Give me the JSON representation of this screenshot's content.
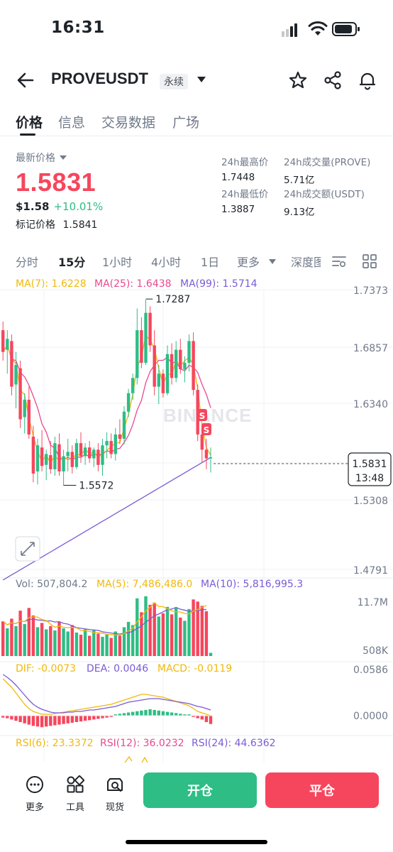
{
  "status": {
    "time": "16:31"
  },
  "header": {
    "pair": "PROVEUSDT",
    "contract_type": "永续"
  },
  "tabs": [
    "价格",
    "信息",
    "交易数据",
    "广场"
  ],
  "price": {
    "label": "最新价格",
    "last": "1.5831",
    "usd": "$1.58",
    "change": "+10.01%",
    "mark_label": "标记价格",
    "mark_value": "1.5841"
  },
  "stats": {
    "high_label": "24h最高价",
    "high": "1.7448",
    "low_label": "24h最低价",
    "low": "1.3887",
    "vol_label": "24h成交量(PROVE)",
    "vol": "5.71亿",
    "amount_label": "24h成交额(USDT)",
    "amount": "9.13亿"
  },
  "timeframes": [
    "分时",
    "15分",
    "1小时",
    "4小时",
    "1日",
    "更多",
    "深度图"
  ],
  "indicators": {
    "ma7": "MA(7): 1.6228",
    "ma25": "MA(25): 1.6438",
    "ma99": "MA(99): 1.5714",
    "vol": "Vol: 507,804.2",
    "vol_ma5": "MA(5): 7,486,486.0",
    "vol_ma10": "MA(10): 5,816,995.3",
    "dif": "DIF: -0.0073",
    "dea": "DEA: 0.0046",
    "macd": "MACD: -0.0119",
    "rsi6": "RSI(6): 23.3372",
    "rsi12": "RSI(12): 36.0232",
    "rsi24": "RSI(24): 44.6362"
  },
  "chart_data": {
    "type": "candlestick",
    "price_axis_ticks": [
      "1.7373",
      "1.6857",
      "1.6340",
      "1.5831",
      "1.5308",
      "1.4791"
    ],
    "current_price": "1.5831",
    "countdown": "13:48",
    "high_marker": "1.7287",
    "low_marker": "1.5572",
    "volume_axis_ticks": [
      "11.7M",
      "508K"
    ],
    "macd_axis_ticks": [
      "0.0586",
      "0.0000"
    ],
    "watermark": "BINANCE",
    "candles": [
      {
        "o": 1.7,
        "h": 1.708,
        "l": 1.672,
        "c": 1.68
      },
      {
        "o": 1.682,
        "h": 1.7,
        "l": 1.66,
        "c": 1.692
      },
      {
        "o": 1.69,
        "h": 1.696,
        "l": 1.64,
        "c": 1.648
      },
      {
        "o": 1.65,
        "h": 1.68,
        "l": 1.628,
        "c": 1.668
      },
      {
        "o": 1.665,
        "h": 1.672,
        "l": 1.61,
        "c": 1.618
      },
      {
        "o": 1.62,
        "h": 1.642,
        "l": 1.605,
        "c": 1.636
      },
      {
        "o": 1.636,
        "h": 1.648,
        "l": 1.6,
        "c": 1.604
      },
      {
        "o": 1.602,
        "h": 1.612,
        "l": 1.56,
        "c": 1.568
      },
      {
        "o": 1.57,
        "h": 1.6,
        "l": 1.558,
        "c": 1.594
      },
      {
        "o": 1.592,
        "h": 1.608,
        "l": 1.57,
        "c": 1.575
      },
      {
        "o": 1.576,
        "h": 1.59,
        "l": 1.562,
        "c": 1.586
      },
      {
        "o": 1.585,
        "h": 1.598,
        "l": 1.568,
        "c": 1.572
      },
      {
        "o": 1.572,
        "h": 1.602,
        "l": 1.566,
        "c": 1.596
      },
      {
        "o": 1.595,
        "h": 1.605,
        "l": 1.566,
        "c": 1.57
      },
      {
        "o": 1.57,
        "h": 1.59,
        "l": 1.557,
        "c": 1.584
      },
      {
        "o": 1.584,
        "h": 1.6,
        "l": 1.57,
        "c": 1.588
      },
      {
        "o": 1.588,
        "h": 1.594,
        "l": 1.568,
        "c": 1.574
      },
      {
        "o": 1.574,
        "h": 1.6,
        "l": 1.572,
        "c": 1.596
      },
      {
        "o": 1.596,
        "h": 1.606,
        "l": 1.578,
        "c": 1.584
      },
      {
        "o": 1.584,
        "h": 1.596,
        "l": 1.576,
        "c": 1.592
      },
      {
        "o": 1.592,
        "h": 1.598,
        "l": 1.578,
        "c": 1.582
      },
      {
        "o": 1.582,
        "h": 1.592,
        "l": 1.574,
        "c": 1.59
      },
      {
        "o": 1.59,
        "h": 1.596,
        "l": 1.57,
        "c": 1.576
      },
      {
        "o": 1.576,
        "h": 1.6,
        "l": 1.566,
        "c": 1.594
      },
      {
        "o": 1.594,
        "h": 1.606,
        "l": 1.582,
        "c": 1.598
      },
      {
        "o": 1.598,
        "h": 1.605,
        "l": 1.582,
        "c": 1.586
      },
      {
        "o": 1.586,
        "h": 1.61,
        "l": 1.58,
        "c": 1.604
      },
      {
        "o": 1.604,
        "h": 1.618,
        "l": 1.595,
        "c": 1.6
      },
      {
        "o": 1.6,
        "h": 1.63,
        "l": 1.595,
        "c": 1.625
      },
      {
        "o": 1.625,
        "h": 1.646,
        "l": 1.62,
        "c": 1.642
      },
      {
        "o": 1.642,
        "h": 1.66,
        "l": 1.636,
        "c": 1.656
      },
      {
        "o": 1.656,
        "h": 1.72,
        "l": 1.65,
        "c": 1.7
      },
      {
        "o": 1.7,
        "h": 1.712,
        "l": 1.665,
        "c": 1.67
      },
      {
        "o": 1.67,
        "h": 1.728,
        "l": 1.668,
        "c": 1.716
      },
      {
        "o": 1.716,
        "h": 1.722,
        "l": 1.68,
        "c": 1.686
      },
      {
        "o": 1.686,
        "h": 1.7,
        "l": 1.64,
        "c": 1.648
      },
      {
        "o": 1.648,
        "h": 1.668,
        "l": 1.632,
        "c": 1.66
      },
      {
        "o": 1.66,
        "h": 1.664,
        "l": 1.638,
        "c": 1.642
      },
      {
        "o": 1.642,
        "h": 1.686,
        "l": 1.64,
        "c": 1.678
      },
      {
        "o": 1.678,
        "h": 1.688,
        "l": 1.65,
        "c": 1.656
      },
      {
        "o": 1.656,
        "h": 1.69,
        "l": 1.652,
        "c": 1.682
      },
      {
        "o": 1.682,
        "h": 1.692,
        "l": 1.66,
        "c": 1.664
      },
      {
        "o": 1.664,
        "h": 1.676,
        "l": 1.652,
        "c": 1.67
      },
      {
        "o": 1.67,
        "h": 1.696,
        "l": 1.662,
        "c": 1.69
      },
      {
        "o": 1.69,
        "h": 1.698,
        "l": 1.64,
        "c": 1.645
      },
      {
        "o": 1.645,
        "h": 1.65,
        "l": 1.598,
        "c": 1.604
      },
      {
        "o": 1.604,
        "h": 1.612,
        "l": 1.578,
        "c": 1.59
      },
      {
        "o": 1.59,
        "h": 1.6,
        "l": 1.572,
        "c": 1.582
      },
      {
        "o": 1.582,
        "h": 1.592,
        "l": 1.569,
        "c": 1.583
      }
    ],
    "volumes": [
      6.5,
      5.2,
      7.0,
      5.6,
      8.5,
      6.0,
      9.0,
      7.6,
      5.4,
      6.2,
      5.0,
      5.6,
      4.8,
      6.4,
      5.2,
      4.6,
      5.8,
      4.4,
      4.0,
      5.0,
      3.8,
      4.8,
      4.2,
      3.6,
      4.0,
      3.4,
      4.6,
      3.8,
      5.4,
      6.4,
      5.8,
      10.8,
      8.2,
      11.2,
      9.6,
      10.0,
      7.4,
      8.0,
      9.2,
      7.8,
      9.0,
      7.2,
      6.6,
      8.8,
      10.6,
      10.2,
      9.4,
      8.4,
      0.6
    ]
  },
  "bottom": {
    "more": "更多",
    "tools": "工具",
    "spot": "现货",
    "open": "开仓",
    "close": "平仓"
  },
  "colors": {
    "up": "#2ebd85",
    "down": "#f6465d",
    "ma7": "#f0b90b",
    "ma25": "#e9488f",
    "ma99": "#7a5bd6",
    "open_btn": "#2ebd85",
    "close_btn": "#f6465d"
  }
}
